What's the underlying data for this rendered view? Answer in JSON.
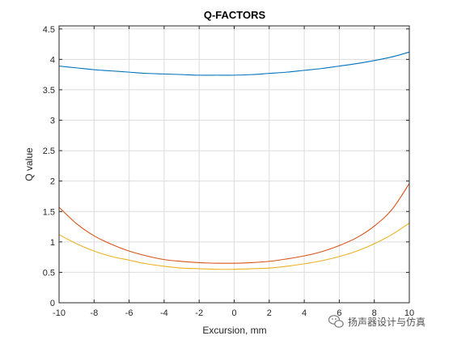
{
  "chart_data": {
    "type": "line",
    "title": "Q-FACTORS",
    "xlabel": "Excursion, mm",
    "ylabel": "Q value",
    "xlim": [
      -10,
      10
    ],
    "ylim": [
      0,
      4.55
    ],
    "xticks": [
      -10,
      -8,
      -6,
      -4,
      -2,
      0,
      2,
      4,
      6,
      8,
      10
    ],
    "yticks": [
      0,
      0.5,
      1,
      1.5,
      2,
      2.5,
      3,
      3.5,
      4,
      4.5
    ],
    "grid": true,
    "series": [
      {
        "color": "#0072BD",
        "x": [
          -10,
          -9,
          -8,
          -7,
          -6,
          -5,
          -4,
          -3,
          -2,
          -1,
          0,
          1,
          2,
          3,
          4,
          5,
          6,
          7,
          8,
          9,
          10
        ],
        "y": [
          3.89,
          3.86,
          3.83,
          3.81,
          3.79,
          3.77,
          3.76,
          3.75,
          3.74,
          3.74,
          3.74,
          3.75,
          3.77,
          3.79,
          3.82,
          3.85,
          3.89,
          3.93,
          3.98,
          4.04,
          4.12
        ]
      },
      {
        "color": "#D95319",
        "x": [
          -10,
          -9,
          -8,
          -7,
          -6,
          -5,
          -4,
          -3,
          -2,
          -1,
          0,
          1,
          2,
          3,
          4,
          5,
          6,
          7,
          8,
          9,
          10
        ],
        "y": [
          1.57,
          1.3,
          1.1,
          0.96,
          0.85,
          0.77,
          0.71,
          0.68,
          0.66,
          0.65,
          0.65,
          0.66,
          0.68,
          0.72,
          0.77,
          0.84,
          0.94,
          1.07,
          1.26,
          1.53,
          1.96
        ]
      },
      {
        "color": "#EDB120",
        "x": [
          -10,
          -9,
          -8,
          -7,
          -6,
          -5,
          -4,
          -3,
          -2,
          -1,
          0,
          1,
          2,
          3,
          4,
          5,
          6,
          7,
          8,
          9,
          10
        ],
        "y": [
          1.12,
          0.97,
          0.85,
          0.76,
          0.7,
          0.64,
          0.6,
          0.57,
          0.56,
          0.55,
          0.55,
          0.56,
          0.57,
          0.6,
          0.64,
          0.69,
          0.76,
          0.85,
          0.97,
          1.12,
          1.31
        ]
      }
    ]
  },
  "watermark": {
    "text": "扬声器设计与仿真",
    "icon": "wechat-icon"
  }
}
